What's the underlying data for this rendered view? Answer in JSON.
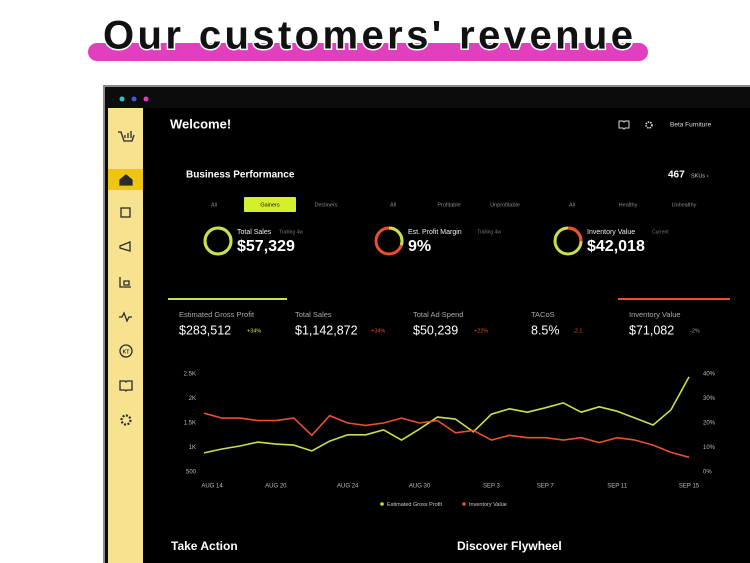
{
  "header": {
    "title": "Our customers' revenue"
  },
  "app": {
    "welcome": "Welcome!",
    "account": "Beta Furniture",
    "section": "Business Performance",
    "sku_count": "467",
    "sku_label": "SKUs ›",
    "filters": [
      [
        "All",
        "Gainers",
        "Decliners"
      ],
      [
        "All",
        "Profitable",
        "Unprofitable"
      ],
      [
        "All",
        "Healthy",
        "Unhealthy"
      ]
    ],
    "kpis": [
      {
        "label": "Total Sales",
        "period": "Trailing 4w",
        "value": "$57,329"
      },
      {
        "label": "Est. Profit Margin",
        "period": "Trailing 4w",
        "value": "9%"
      },
      {
        "label": "Inventory Value",
        "period": "Current",
        "value": "$42,018"
      }
    ],
    "metrics": [
      {
        "label": "Estimated Gross Profit",
        "value": "$283,512",
        "change": "+34%"
      },
      {
        "label": "Total Sales",
        "value": "$1,142,872",
        "change": "+34%"
      },
      {
        "label": "Total Ad Spend",
        "value": "$50,239",
        "change": "+22%"
      },
      {
        "label": "TACoS",
        "value": "8.5%",
        "change": "-2.1"
      },
      {
        "label": "Inventory Value",
        "value": "$71,082",
        "change": "-2%"
      }
    ],
    "sections": [
      "Take Action",
      "Discover Flywheel"
    ]
  },
  "chart_data": {
    "type": "line",
    "categories": [
      "AUG 14",
      null,
      null,
      null,
      "AUG 20",
      null,
      null,
      null,
      "AUG 24",
      null,
      null,
      null,
      "AUG 30",
      null,
      null,
      null,
      "SEP 3",
      null,
      null,
      "SEP 7",
      null,
      null,
      null,
      "SEP 11",
      null,
      null,
      null,
      "SEP 15"
    ],
    "series": [
      {
        "name": "Estimated Gross Profit",
        "color": "#c9e04c",
        "values": [
          890,
          970,
          1030,
          1110,
          1070,
          1050,
          930,
          1130,
          1260,
          1260,
          1360,
          1150,
          1380,
          1620,
          1580,
          1320,
          1680,
          1790,
          1720,
          1810,
          1910,
          1720,
          1830,
          1740,
          1600,
          1460,
          1770,
          2440
        ]
      },
      {
        "name": "Inventory Value",
        "color": "#e8502e",
        "axis": "y2",
        "values": [
          24,
          22,
          22,
          21,
          21,
          22,
          15,
          23,
          20,
          19,
          20,
          22,
          20,
          21,
          16,
          17,
          13,
          15,
          14,
          14,
          13,
          14,
          12,
          14,
          13,
          11,
          8,
          6
        ]
      }
    ],
    "ylim": [
      500,
      2500
    ],
    "yticks": [
      500,
      {
        "value": 1000,
        "label": "1K"
      },
      {
        "value": 1500,
        "label": "1.5K"
      },
      {
        "value": 2000,
        "label": "2K"
      },
      {
        "value": 2500,
        "label": "2.5K"
      }
    ],
    "y2lim": [
      0,
      40
    ],
    "y2ticks": [
      {
        "value": 0,
        "label": "0%"
      },
      {
        "value": 10,
        "label": "10%"
      },
      {
        "value": 20,
        "label": "20%"
      },
      {
        "value": 30,
        "label": "30%"
      },
      {
        "value": 40,
        "label": "40%"
      }
    ],
    "grid": false,
    "legend": "bottom"
  }
}
